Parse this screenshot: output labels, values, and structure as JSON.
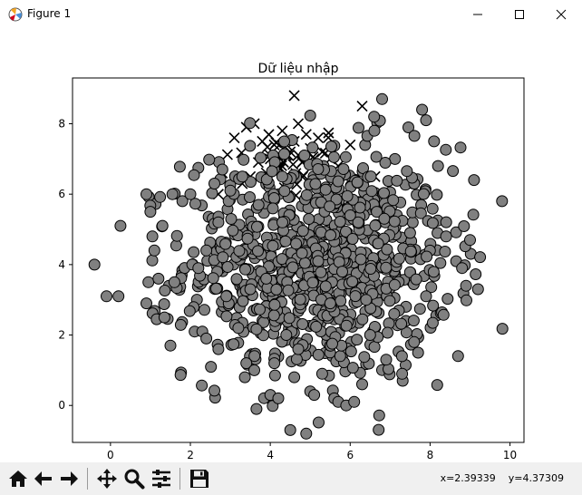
{
  "window": {
    "title": "Figure 1",
    "icons": [
      "matplotlib-logo-icon",
      "minimize-icon",
      "maximize-icon",
      "close-icon"
    ]
  },
  "toolbar": {
    "buttons": [
      "home-icon",
      "back-arrow-icon",
      "forward-arrow-icon",
      "pan-move-icon",
      "zoom-magnifier-icon",
      "subplots-config-icon",
      "save-disk-icon"
    ],
    "coords": {
      "x": "x=2.39339",
      "y": "y=4.37309"
    }
  },
  "chart_data": {
    "type": "scatter",
    "title": "Dữ liệu nhập",
    "xlabel": "",
    "ylabel": "",
    "xlim": [
      -0.95,
      10.35
    ],
    "ylim": [
      -1.05,
      9.3
    ],
    "xticks": [
      0,
      2,
      4,
      6,
      8,
      10
    ],
    "yticks": [
      0,
      2,
      4,
      6,
      8
    ],
    "grid": false,
    "legend": "none",
    "series": [
      {
        "marker": "circle",
        "face_color": "#808080",
        "edge_color": "#000000",
        "approx_count": 950,
        "x": [
          -0.4,
          -0.1,
          0.2,
          0.25,
          0.9,
          0.9,
          0.95,
          1.0,
          1.05,
          1.1,
          1.2,
          1.3,
          1.35,
          1.5,
          1.55,
          1.6,
          1.8,
          2.0,
          2.3,
          2.4,
          2.6,
          2.7,
          2.8,
          2.9,
          3.3,
          3.4,
          3.5,
          3.6,
          4.0,
          4.1,
          4.2,
          4.4,
          4.5,
          4.6,
          4.9,
          5.0,
          5.1,
          5.3,
          5.5,
          5.6,
          5.7,
          5.9,
          6.1,
          6.2,
          6.3,
          6.5,
          6.6,
          6.8,
          6.9,
          7.3,
          7.6,
          7.7,
          7.8,
          7.9,
          8.1,
          8.2,
          8.4,
          8.7,
          8.8,
          8.9,
          9.0,
          9.1,
          9.2,
          9.8,
          2.4,
          3.2,
          2.7,
          3.9,
          4.3,
          5.2,
          6.0,
          6.4,
          7.1,
          7.5,
          4.7,
          5.8,
          3.0,
          2.2,
          6.7,
          7.9
        ],
        "y": [
          4.0,
          3.1,
          3.1,
          5.1,
          2.9,
          6.0,
          3.5,
          5.5,
          4.8,
          4.4,
          3.6,
          5.1,
          2.5,
          1.7,
          6.0,
          3.5,
          5.8,
          6.0,
          2.1,
          1.9,
          6.3,
          1.6,
          6.7,
          3.1,
          6.5,
          1.2,
          3.3,
          1.0,
          0.3,
          1.2,
          0.2,
          2.0,
          -0.7,
          0.8,
          -0.8,
          0.4,
          0.3,
          0.9,
          2.9,
          0.2,
          0.1,
          0.0,
          0.1,
          5.2,
          0.6,
          2.0,
          8.2,
          8.7,
          1.3,
          0.9,
          1.8,
          1.5,
          8.4,
          8.1,
          7.5,
          6.8,
          4.8,
          1.4,
          3.9,
          3.4,
          4.7,
          6.4,
          3.3,
          5.8,
          4.4,
          2.2,
          5.2,
          3.6,
          6.5,
          4.1,
          5.4,
          3.0,
          2.6,
          4.9,
          1.6,
          3.8,
          6.1,
          3.9,
          4.6,
          3.1
        ]
      },
      {
        "marker": "x",
        "color": "#000000",
        "approx_count": 60,
        "x": [
          2.7,
          2.8,
          3.0,
          3.1,
          3.3,
          3.4,
          3.5,
          3.6,
          3.7,
          3.8,
          3.9,
          4.0,
          4.1,
          4.2,
          4.3,
          4.4,
          4.5,
          4.6,
          4.7,
          4.8,
          4.9,
          5.0,
          5.1,
          5.2,
          5.3,
          5.5,
          5.7,
          6.0,
          6.3,
          4.6
        ],
        "y": [
          6.0,
          6.6,
          6.2,
          7.6,
          6.3,
          7.9,
          6.5,
          8.0,
          6.9,
          7.5,
          6.6,
          7.0,
          7.4,
          6.8,
          7.8,
          7.1,
          7.2,
          7.5,
          8.0,
          6.9,
          7.7,
          7.3,
          7.0,
          7.6,
          7.2,
          7.0,
          6.8,
          7.4,
          8.5,
          8.8
        ]
      }
    ]
  }
}
